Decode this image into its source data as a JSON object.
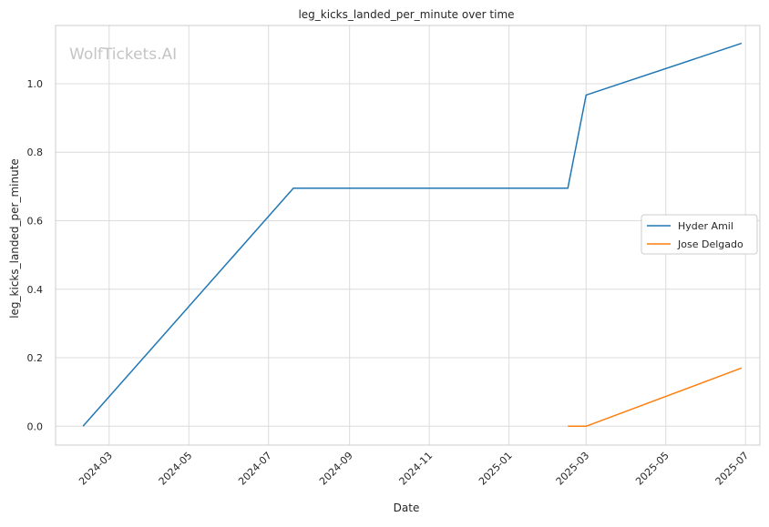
{
  "chart_data": {
    "type": "line",
    "title": "leg_kicks_landed_per_minute over time",
    "xlabel": "Date",
    "ylabel": "leg_kicks_landed_per_minute",
    "watermark": "WolfTickets.AI",
    "x_ticks": [
      "2024-03",
      "2024-05",
      "2024-07",
      "2024-09",
      "2024-11",
      "2025-01",
      "2025-03",
      "2025-05",
      "2025-07"
    ],
    "y_ticks": [
      "0.0",
      "0.2",
      "0.4",
      "0.6",
      "0.8",
      "1.0"
    ],
    "xlim": [
      "2024-01-20",
      "2025-07-12"
    ],
    "ylim": [
      -0.055,
      1.17
    ],
    "grid": true,
    "legend_position": "center-right",
    "series": [
      {
        "name": "Hyder Amil",
        "color": "#1f77b4",
        "x": [
          "2024-02-10",
          "2024-07-20",
          "2025-02-15",
          "2025-03-01",
          "2025-06-28"
        ],
        "y": [
          0.0,
          0.695,
          0.695,
          0.967,
          1.118
        ]
      },
      {
        "name": "Jose Delgado",
        "color": "#ff7f0e",
        "x": [
          "2025-02-15",
          "2025-03-01",
          "2025-06-28"
        ],
        "y": [
          0.0,
          0.0,
          0.17
        ]
      }
    ]
  }
}
